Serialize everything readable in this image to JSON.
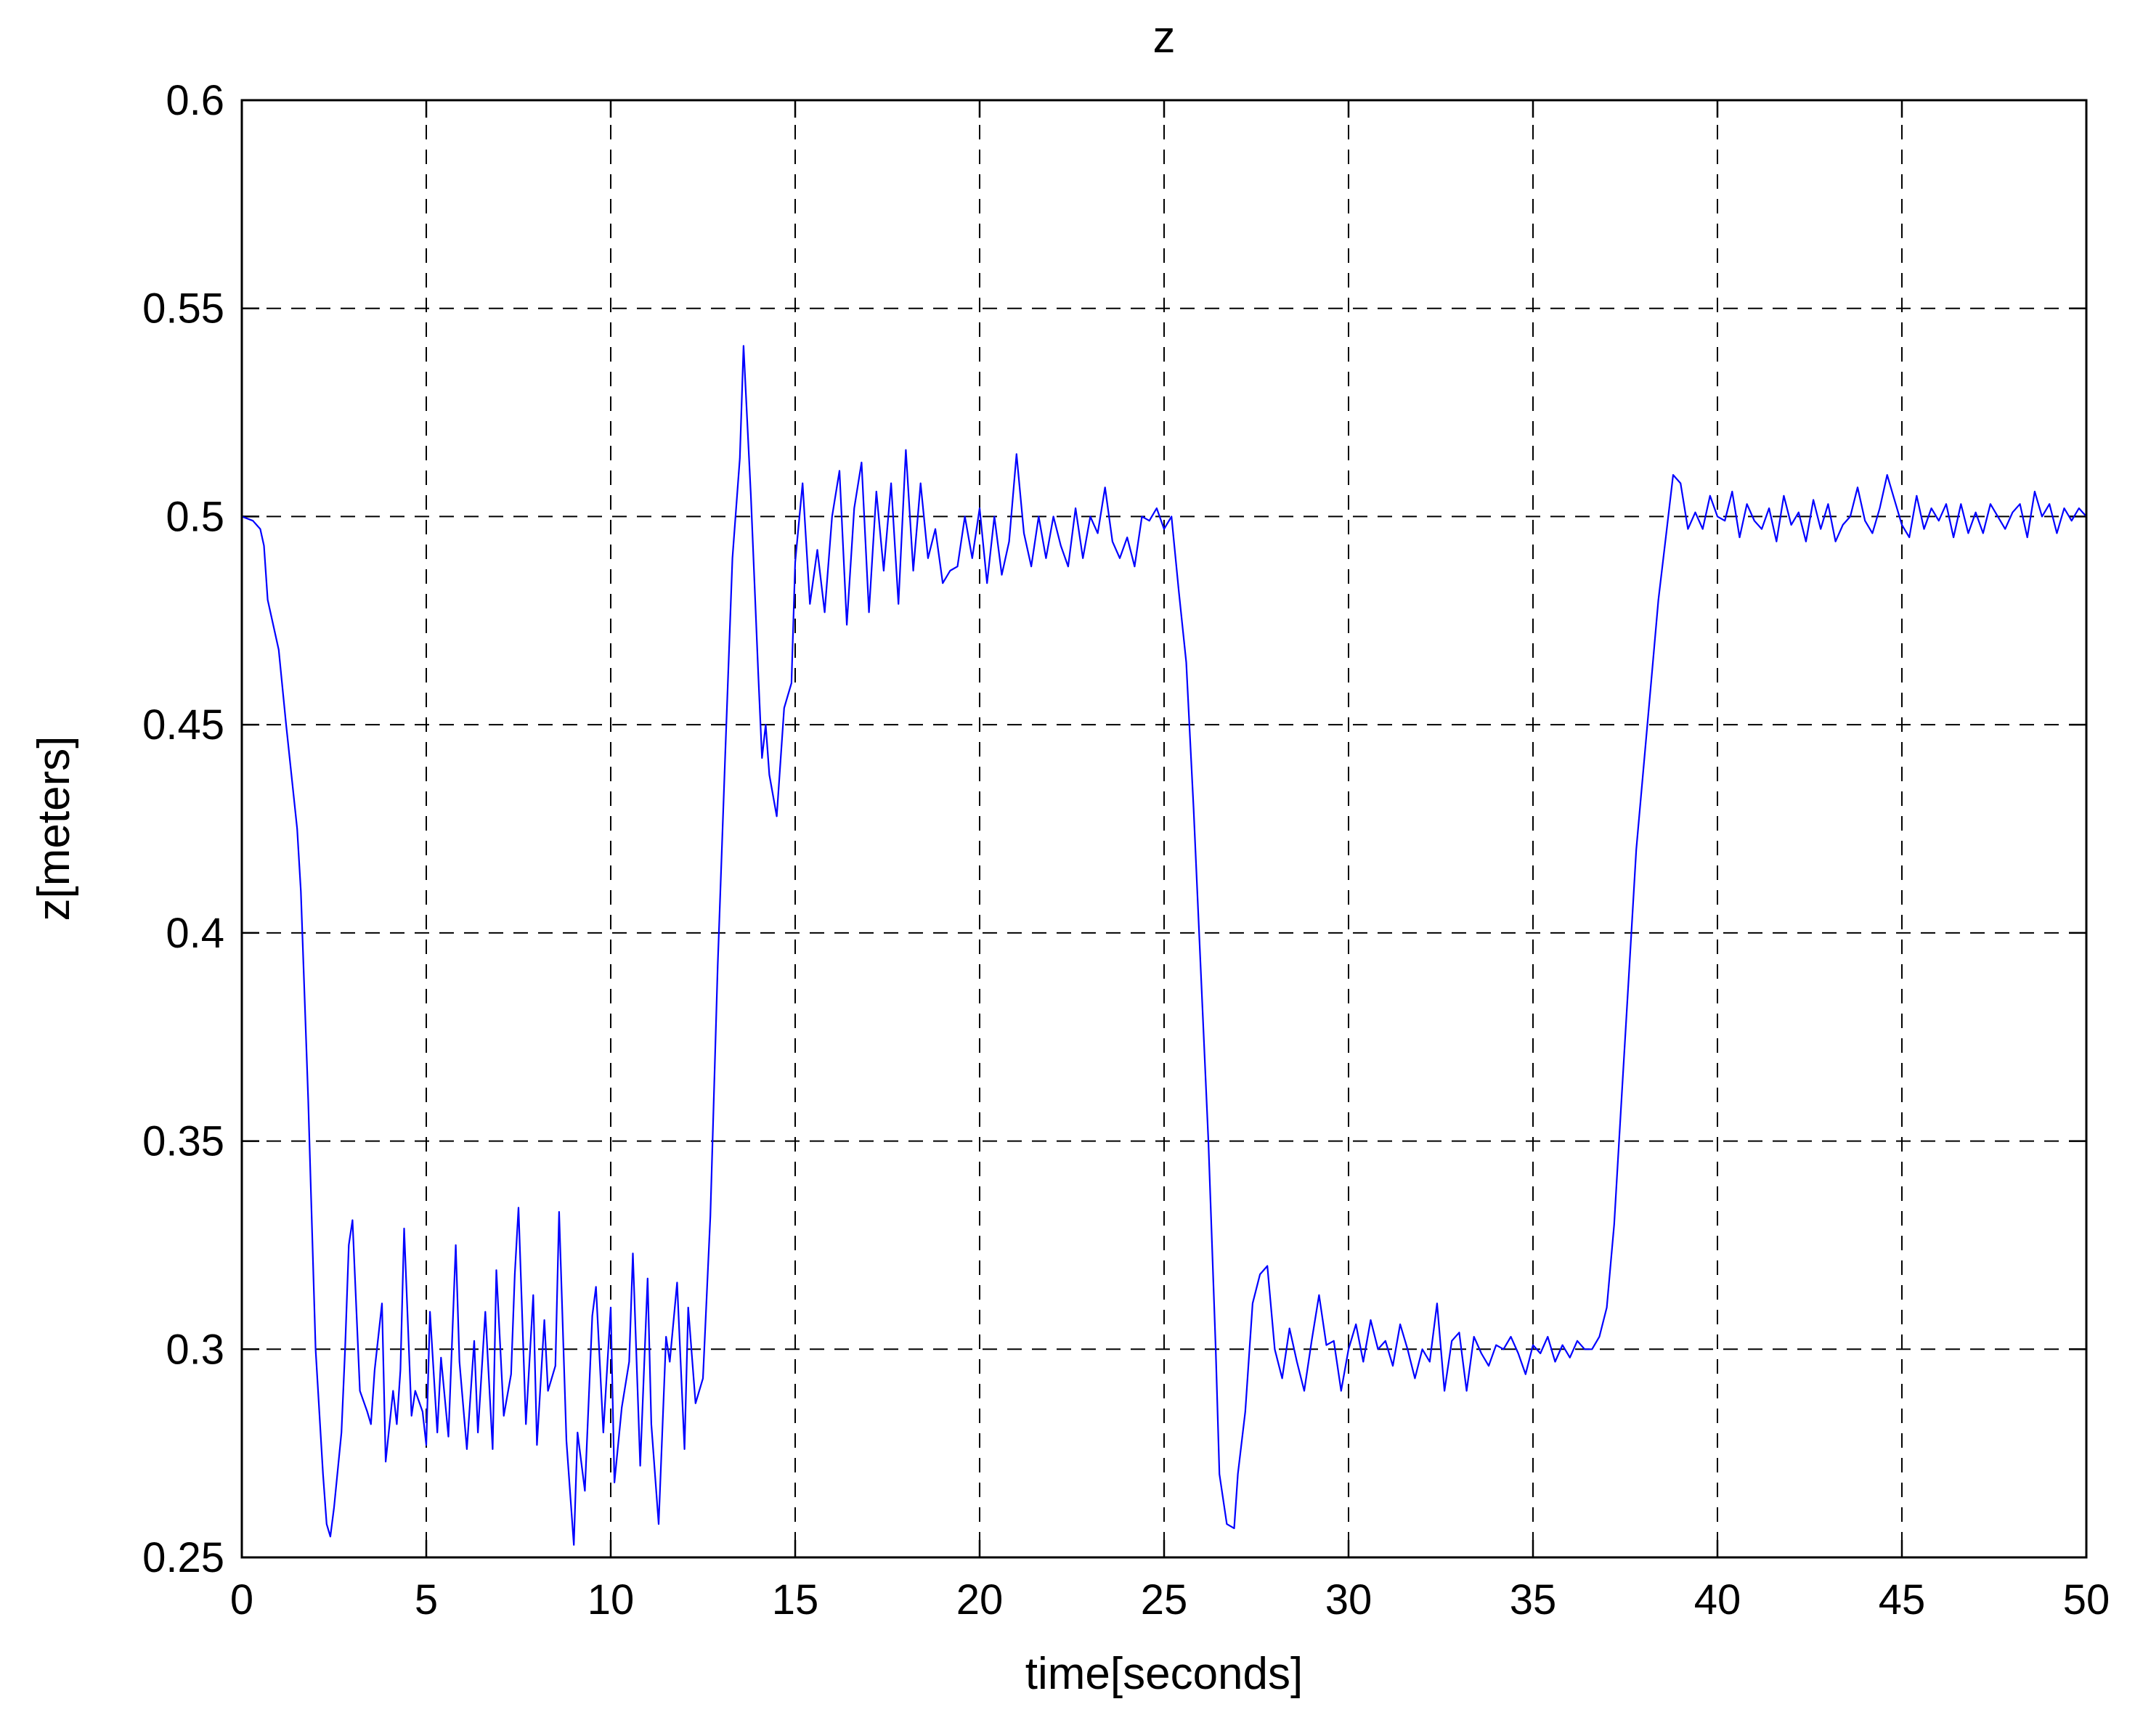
{
  "chart_data": {
    "type": "line",
    "title": "z",
    "xlabel": "time[seconds]",
    "ylabel": "z[meters]",
    "xlim": [
      0,
      50
    ],
    "ylim": [
      0.25,
      0.6
    ],
    "x_ticks": [
      0,
      5,
      10,
      15,
      20,
      25,
      30,
      35,
      40,
      45,
      50
    ],
    "y_ticks": [
      0.25,
      0.3,
      0.35,
      0.4,
      0.45,
      0.5,
      0.55,
      0.6
    ],
    "x_tick_labels": [
      "0",
      "5",
      "10",
      "15",
      "20",
      "25",
      "30",
      "35",
      "40",
      "45",
      "50"
    ],
    "y_tick_labels": [
      "0.25",
      "0.3",
      "0.35",
      "0.4",
      "0.45",
      "0.5",
      "0.55",
      "0.6"
    ],
    "grid": true,
    "line_color": "#0000ff",
    "series": [
      {
        "x": [
          0,
          0.3,
          0.5,
          0.6,
          0.7,
          1.0,
          1.2,
          1.5,
          1.6,
          1.8,
          2.0,
          2.2,
          2.3,
          2.4,
          2.5,
          2.7,
          2.8,
          2.9,
          3.0,
          3.2,
          3.4,
          3.5,
          3.6,
          3.8,
          3.9,
          4.1,
          4.2,
          4.3,
          4.4,
          4.6,
          4.7,
          4.9,
          5.0,
          5.1,
          5.3,
          5.4,
          5.6,
          5.8,
          5.9,
          6.1,
          6.3,
          6.4,
          6.6,
          6.8,
          6.9,
          7.1,
          7.3,
          7.4,
          7.5,
          7.7,
          7.9,
          8.0,
          8.2,
          8.3,
          8.5,
          8.6,
          8.8,
          9.0,
          9.1,
          9.3,
          9.5,
          9.6,
          9.8,
          10.0,
          10.1,
          10.3,
          10.5,
          10.6,
          10.8,
          11.0,
          11.1,
          11.3,
          11.5,
          11.6,
          11.8,
          12.0,
          12.1,
          12.3,
          12.5,
          12.7,
          12.9,
          13.1,
          13.3,
          13.5,
          13.6,
          13.8,
          14.0,
          14.1,
          14.2,
          14.3,
          14.5,
          14.7,
          14.9,
          15.0,
          15.2,
          15.4,
          15.6,
          15.8,
          16.0,
          16.2,
          16.4,
          16.6,
          16.8,
          17.0,
          17.2,
          17.4,
          17.6,
          17.8,
          18.0,
          18.2,
          18.4,
          18.6,
          18.8,
          19.0,
          19.2,
          19.4,
          19.6,
          19.8,
          20.0,
          20.2,
          20.4,
          20.6,
          20.8,
          21.0,
          21.2,
          21.4,
          21.6,
          21.8,
          22.0,
          22.2,
          22.4,
          22.6,
          22.8,
          23.0,
          23.2,
          23.4,
          23.6,
          23.8,
          24.0,
          24.2,
          24.4,
          24.6,
          24.8,
          25.0,
          25.2,
          25.4,
          25.6,
          25.8,
          26.0,
          26.2,
          26.4,
          26.5,
          26.7,
          26.9,
          27.0,
          27.2,
          27.4,
          27.6,
          27.8,
          28.0,
          28.2,
          28.4,
          28.6,
          28.8,
          29.0,
          29.2,
          29.4,
          29.6,
          29.8,
          30.0,
          30.2,
          30.4,
          30.6,
          30.8,
          31.0,
          31.2,
          31.4,
          31.6,
          31.8,
          32.0,
          32.2,
          32.4,
          32.6,
          32.8,
          33.0,
          33.2,
          33.4,
          33.6,
          33.8,
          34.0,
          34.2,
          34.4,
          34.6,
          34.8,
          35.0,
          35.2,
          35.4,
          35.6,
          35.8,
          36.0,
          36.2,
          36.4,
          36.6,
          36.8,
          37.0,
          37.2,
          37.4,
          37.6,
          37.8,
          38.0,
          38.2,
          38.4,
          38.6,
          38.8,
          39.0,
          39.2,
          39.4,
          39.6,
          39.8,
          40.0,
          40.2,
          40.4,
          40.6,
          40.8,
          41.0,
          41.2,
          41.4,
          41.6,
          41.8,
          42.0,
          42.2,
          42.4,
          42.6,
          42.8,
          43.0,
          43.2,
          43.4,
          43.6,
          43.8,
          44.0,
          44.2,
          44.4,
          44.6,
          44.8,
          45.0,
          45.2,
          45.4,
          45.6,
          45.8,
          46.0,
          46.2,
          46.4,
          46.6,
          46.8,
          47.0,
          47.2,
          47.4,
          47.6,
          47.8,
          48.0,
          48.2,
          48.4,
          48.6,
          48.8,
          49.0,
          49.2,
          49.4,
          49.6,
          49.8,
          50.0
        ],
        "y": [
          0.5,
          0.499,
          0.497,
          0.493,
          0.48,
          0.468,
          0.45,
          0.425,
          0.41,
          0.36,
          0.3,
          0.27,
          0.258,
          0.255,
          0.262,
          0.28,
          0.3,
          0.325,
          0.331,
          0.29,
          0.285,
          0.282,
          0.295,
          0.311,
          0.273,
          0.29,
          0.282,
          0.295,
          0.329,
          0.284,
          0.29,
          0.285,
          0.277,
          0.309,
          0.28,
          0.298,
          0.279,
          0.325,
          0.297,
          0.276,
          0.302,
          0.28,
          0.309,
          0.276,
          0.319,
          0.284,
          0.294,
          0.318,
          0.334,
          0.282,
          0.313,
          0.277,
          0.307,
          0.29,
          0.296,
          0.333,
          0.278,
          0.253,
          0.28,
          0.266,
          0.308,
          0.315,
          0.28,
          0.31,
          0.268,
          0.286,
          0.297,
          0.323,
          0.272,
          0.317,
          0.282,
          0.258,
          0.303,
          0.297,
          0.316,
          0.276,
          0.31,
          0.287,
          0.293,
          0.332,
          0.392,
          0.442,
          0.49,
          0.514,
          0.541,
          0.505,
          0.462,
          0.442,
          0.45,
          0.438,
          0.428,
          0.454,
          0.46,
          0.489,
          0.508,
          0.479,
          0.492,
          0.477,
          0.5,
          0.511,
          0.474,
          0.502,
          0.513,
          0.477,
          0.506,
          0.487,
          0.508,
          0.479,
          0.516,
          0.487,
          0.508,
          0.49,
          0.497,
          0.484,
          0.487,
          0.488,
          0.5,
          0.49,
          0.502,
          0.484,
          0.5,
          0.486,
          0.494,
          0.515,
          0.496,
          0.488,
          0.5,
          0.49,
          0.5,
          0.493,
          0.488,
          0.502,
          0.49,
          0.5,
          0.496,
          0.507,
          0.494,
          0.49,
          0.495,
          0.488,
          0.5,
          0.499,
          0.502,
          0.497,
          0.5,
          0.482,
          0.465,
          0.43,
          0.39,
          0.35,
          0.3,
          0.27,
          0.258,
          0.257,
          0.27,
          0.285,
          0.311,
          0.318,
          0.32,
          0.3,
          0.293,
          0.305,
          0.297,
          0.29,
          0.302,
          0.313,
          0.301,
          0.302,
          0.29,
          0.3,
          0.306,
          0.297,
          0.307,
          0.3,
          0.302,
          0.296,
          0.306,
          0.3,
          0.293,
          0.3,
          0.297,
          0.311,
          0.29,
          0.302,
          0.304,
          0.29,
          0.303,
          0.299,
          0.296,
          0.301,
          0.3,
          0.303,
          0.299,
          0.294,
          0.301,
          0.299,
          0.303,
          0.297,
          0.301,
          0.298,
          0.302,
          0.3,
          0.3,
          0.303,
          0.31,
          0.33,
          0.36,
          0.39,
          0.42,
          0.44,
          0.46,
          0.48,
          0.495,
          0.51,
          0.508,
          0.497,
          0.501,
          0.497,
          0.505,
          0.5,
          0.499,
          0.506,
          0.495,
          0.503,
          0.499,
          0.497,
          0.502,
          0.494,
          0.505,
          0.498,
          0.501,
          0.494,
          0.504,
          0.497,
          0.503,
          0.494,
          0.498,
          0.5,
          0.507,
          0.499,
          0.496,
          0.502,
          0.51,
          0.504,
          0.498,
          0.495,
          0.505,
          0.497,
          0.502,
          0.499,
          0.503,
          0.495,
          0.503,
          0.496,
          0.501,
          0.496,
          0.503,
          0.5,
          0.497,
          0.501,
          0.503,
          0.495,
          0.506,
          0.5,
          0.503,
          0.496,
          0.502,
          0.499,
          0.502,
          0.5
        ]
      }
    ]
  }
}
